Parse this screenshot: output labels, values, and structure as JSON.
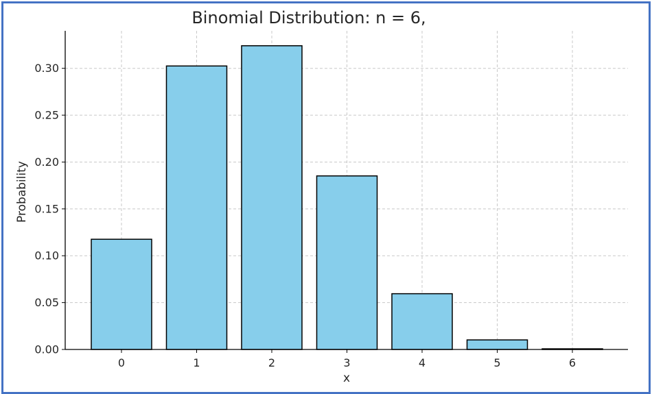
{
  "chart_data": {
    "type": "bar",
    "title": "Binomial Distribution: n = 6,",
    "xlabel": "x",
    "ylabel": "Probability",
    "categories": [
      "0",
      "1",
      "2",
      "3",
      "4",
      "5",
      "6"
    ],
    "values": [
      0.1176,
      0.3025,
      0.3241,
      0.1852,
      0.0595,
      0.0102,
      0.0007
    ],
    "ylim": [
      0,
      0.34
    ],
    "yticks": [
      0.0,
      0.05,
      0.1,
      0.15,
      0.2,
      0.25,
      0.3
    ],
    "ytick_labels": [
      "0.00",
      "0.05",
      "0.10",
      "0.15",
      "0.20",
      "0.25",
      "0.30"
    ],
    "grid": true,
    "bar_color": "#87ceeb",
    "edge_color": "#000000",
    "frame_color": "#4472c4"
  }
}
